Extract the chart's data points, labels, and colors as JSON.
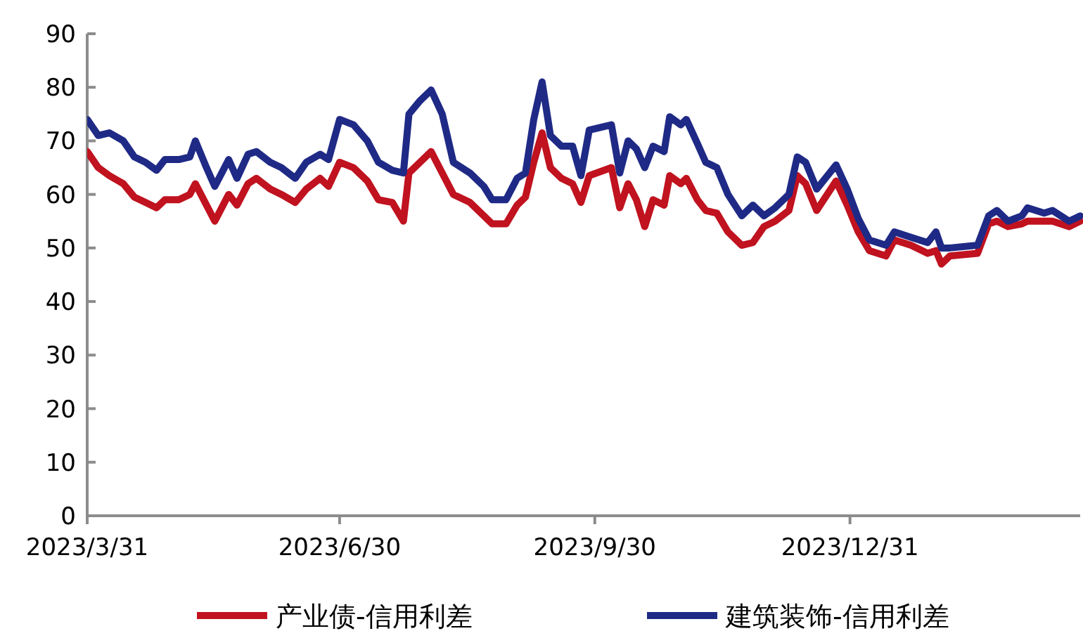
{
  "chart_data": {
    "type": "line",
    "legend": "bottom",
    "grid": false,
    "marker": "none",
    "line_style": "solid",
    "xlim": [
      "2023-03-31",
      "2024-03-23"
    ],
    "xticks": [
      {
        "value": "2023-03-31",
        "label": "2023/3/31"
      },
      {
        "value": "2023-06-30",
        "label": "2023/6/30"
      },
      {
        "value": "2023-09-30",
        "label": "2023/9/30"
      },
      {
        "value": "2023-12-31",
        "label": "2023/12/31"
      }
    ],
    "ylim": [
      0,
      90
    ],
    "yticks": [
      0,
      10,
      20,
      30,
      40,
      50,
      60,
      70,
      80,
      90
    ],
    "x": [
      "2023-03-31",
      "2023-04-04",
      "2023-04-08",
      "2023-04-13",
      "2023-04-17",
      "2023-04-21",
      "2023-04-25",
      "2023-04-28",
      "2023-05-03",
      "2023-05-07",
      "2023-05-09",
      "2023-05-13",
      "2023-05-16",
      "2023-05-21",
      "2023-05-24",
      "2023-05-28",
      "2023-05-31",
      "2023-06-05",
      "2023-06-09",
      "2023-06-14",
      "2023-06-18",
      "2023-06-23",
      "2023-06-26",
      "2023-06-30",
      "2023-07-05",
      "2023-07-10",
      "2023-07-14",
      "2023-07-19",
      "2023-07-23",
      "2023-07-25",
      "2023-07-29",
      "2023-08-02",
      "2023-08-06",
      "2023-08-10",
      "2023-08-16",
      "2023-08-21",
      "2023-08-24",
      "2023-08-29",
      "2023-09-02",
      "2023-09-05",
      "2023-09-08",
      "2023-09-11",
      "2023-09-14",
      "2023-09-18",
      "2023-09-22",
      "2023-09-25",
      "2023-09-28",
      "2023-10-06",
      "2023-10-09",
      "2023-10-12",
      "2023-10-15",
      "2023-10-18",
      "2023-10-21",
      "2023-10-25",
      "2023-10-27",
      "2023-10-31",
      "2023-11-02",
      "2023-11-06",
      "2023-11-09",
      "2023-11-13",
      "2023-11-17",
      "2023-11-22",
      "2023-11-26",
      "2023-11-30",
      "2023-12-04",
      "2023-12-09",
      "2023-12-12",
      "2023-12-15",
      "2023-12-19",
      "2023-12-26",
      "2023-12-30",
      "2024-01-03",
      "2024-01-07",
      "2024-01-13",
      "2024-01-16",
      "2024-01-22",
      "2024-01-28",
      "2024-01-31",
      "2024-02-02",
      "2024-02-05",
      "2024-02-15",
      "2024-02-19",
      "2024-02-22",
      "2024-02-26",
      "2024-03-02",
      "2024-03-04",
      "2024-03-10",
      "2024-03-13",
      "2024-03-19",
      "2024-03-23"
    ],
    "series": [
      {
        "name": "产业债-信用利差",
        "color": "#c0121f",
        "values": [
          68,
          65,
          63.5,
          62,
          59.5,
          58.5,
          57.5,
          59,
          59,
          60,
          62,
          58,
          55,
          60,
          58,
          62,
          63,
          61,
          60,
          58.5,
          61,
          63,
          61.5,
          66,
          65,
          62.5,
          59,
          58.5,
          55,
          64,
          66,
          68,
          64,
          60,
          58.5,
          56,
          54.5,
          54.5,
          58,
          59.5,
          66,
          71.5,
          65,
          63,
          62,
          58.5,
          63.5,
          65,
          57.5,
          62,
          59,
          54,
          59,
          58,
          63.5,
          62,
          63,
          59,
          57,
          56.5,
          53,
          50.5,
          51,
          54,
          55,
          57,
          63.5,
          62,
          57,
          62.5,
          58,
          53,
          49.5,
          48.5,
          51.5,
          50.5,
          49,
          49.5,
          47,
          48.5,
          49,
          54.5,
          55,
          54,
          54.5,
          55,
          55,
          55,
          54,
          55
        ]
      },
      {
        "name": "建筑装饰-信用利差",
        "color": "#1f2a86",
        "values": [
          74,
          71,
          71.5,
          70,
          67,
          66,
          64.5,
          66.5,
          66.5,
          67,
          70,
          65,
          61.5,
          66.5,
          63,
          67.5,
          68,
          66,
          65,
          63,
          66,
          67.5,
          66.5,
          74,
          73,
          70,
          66,
          64.5,
          64,
          75,
          77.5,
          79.5,
          75,
          66,
          64,
          61.5,
          59,
          59,
          63,
          64,
          74,
          81,
          71,
          69,
          69,
          63.5,
          72,
          73,
          64,
          70,
          68.5,
          65,
          69,
          68,
          74.5,
          73,
          74,
          69.5,
          66,
          65,
          60,
          56,
          58,
          56,
          57.5,
          60,
          67,
          66,
          61,
          65.5,
          61,
          55.5,
          51.5,
          50.5,
          53,
          52,
          51,
          53,
          50,
          50,
          50.5,
          56,
          57,
          55,
          56,
          57.5,
          56.5,
          57,
          55,
          56
        ]
      }
    ]
  }
}
